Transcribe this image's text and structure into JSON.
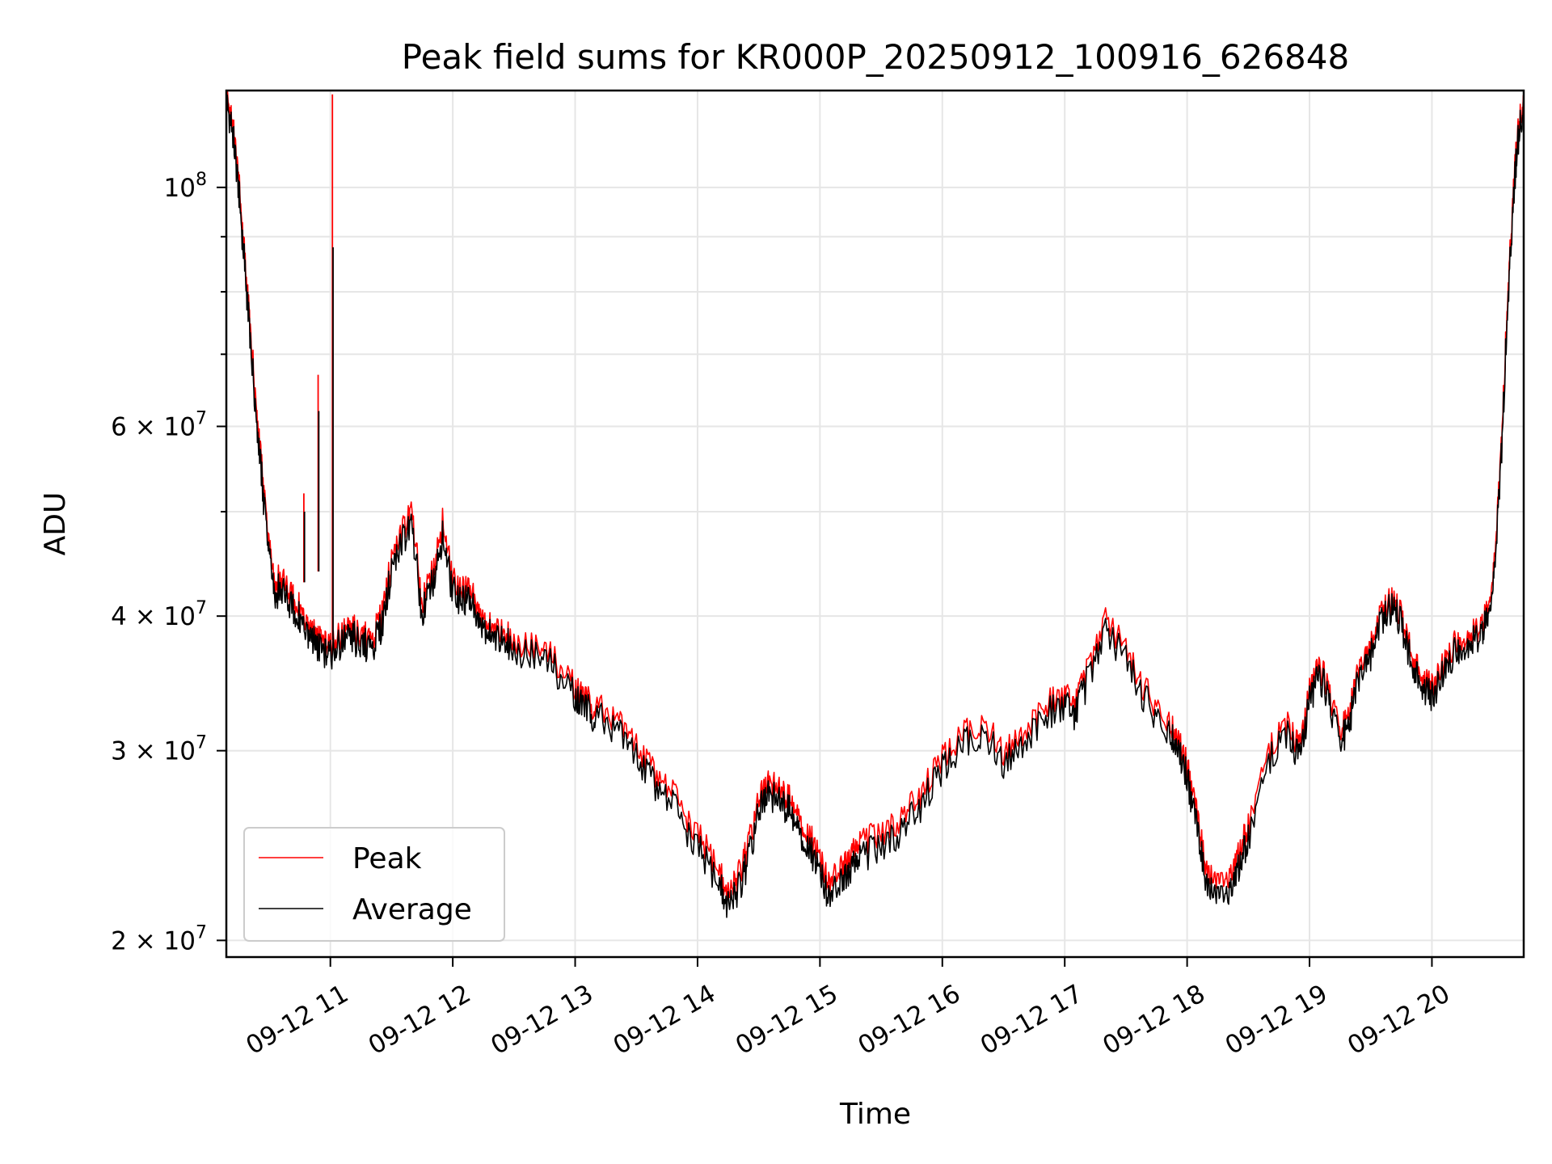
{
  "chart_data": {
    "type": "line",
    "title": "Peak field sums for KR000P_20250912_100916_626848",
    "xlabel": "Time",
    "ylabel": "ADU",
    "yscale": "log",
    "xlim": [
      "2025-09-12 10:09",
      "2025-09-12 20:45"
    ],
    "ylim": [
      19300000,
      123000000
    ],
    "grid": true,
    "legend_position": "lower-left",
    "x_ticks": [
      "09-12 11",
      "09-12 12",
      "09-12 13",
      "09-12 14",
      "09-12 15",
      "09-12 16",
      "09-12 17",
      "09-12 18",
      "09-12 19",
      "09-12 20"
    ],
    "x_tick_times": [
      "2025-09-12 11:00",
      "2025-09-12 12:00",
      "2025-09-12 13:00",
      "2025-09-12 14:00",
      "2025-09-12 15:00",
      "2025-09-12 16:00",
      "2025-09-12 17:00",
      "2025-09-12 18:00",
      "2025-09-12 19:00",
      "2025-09-12 20:00"
    ],
    "y_ticks": [
      {
        "value": 20000000,
        "mantissa": "2 × 10",
        "exp": "7"
      },
      {
        "value": 30000000,
        "mantissa": "3 × 10",
        "exp": "7"
      },
      {
        "value": 40000000,
        "mantissa": "4 × 10",
        "exp": "7"
      },
      {
        "value": 60000000,
        "mantissa": "6 × 10",
        "exp": "7"
      },
      {
        "value": 100000000,
        "mantissa": "10",
        "exp": "8"
      }
    ],
    "y_minor_ticks": [
      50000000,
      70000000,
      80000000,
      90000000
    ],
    "series": [
      {
        "name": "Peak",
        "color": "#ff0000"
      },
      {
        "name": "Average",
        "color": "#000000"
      }
    ],
    "x": [
      "2025-09-12 10:09",
      "2025-09-12 10:12",
      "2025-09-12 10:15",
      "2025-09-12 10:18",
      "2025-09-12 10:21",
      "2025-09-12 10:24",
      "2025-09-12 10:27",
      "2025-09-12 10:30",
      "2025-09-12 10:33",
      "2025-09-12 10:36",
      "2025-09-12 10:40",
      "2025-09-12 10:44",
      "2025-09-12 10:48",
      "2025-09-12 10:52",
      "2025-09-12 10:56",
      "2025-09-12 11:00",
      "2025-09-12 11:05",
      "2025-09-12 11:10",
      "2025-09-12 11:15",
      "2025-09-12 11:20",
      "2025-09-12 11:25",
      "2025-09-12 11:30",
      "2025-09-12 11:35",
      "2025-09-12 11:40",
      "2025-09-12 11:45",
      "2025-09-12 11:50",
      "2025-09-12 11:55",
      "2025-09-12 12:00",
      "2025-09-12 12:05",
      "2025-09-12 12:10",
      "2025-09-12 12:15",
      "2025-09-12 12:20",
      "2025-09-12 12:25",
      "2025-09-12 12:30",
      "2025-09-12 12:40",
      "2025-09-12 12:50",
      "2025-09-12 13:00",
      "2025-09-12 13:05",
      "2025-09-12 13:10",
      "2025-09-12 13:20",
      "2025-09-12 13:30",
      "2025-09-12 13:40",
      "2025-09-12 13:50",
      "2025-09-12 14:00",
      "2025-09-12 14:10",
      "2025-09-12 14:15",
      "2025-09-12 14:20",
      "2025-09-12 14:25",
      "2025-09-12 14:30",
      "2025-09-12 14:35",
      "2025-09-12 14:40",
      "2025-09-12 14:45",
      "2025-09-12 14:50",
      "2025-09-12 14:55",
      "2025-09-12 15:00",
      "2025-09-12 15:05",
      "2025-09-12 15:10",
      "2025-09-12 15:15",
      "2025-09-12 15:20",
      "2025-09-12 15:30",
      "2025-09-12 15:40",
      "2025-09-12 15:50",
      "2025-09-12 16:00",
      "2025-09-12 16:10",
      "2025-09-12 16:20",
      "2025-09-12 16:30",
      "2025-09-12 16:40",
      "2025-09-12 16:50",
      "2025-09-12 17:00",
      "2025-09-12 17:05",
      "2025-09-12 17:10",
      "2025-09-12 17:20",
      "2025-09-12 17:30",
      "2025-09-12 17:40",
      "2025-09-12 17:50",
      "2025-09-12 17:55",
      "2025-09-12 18:00",
      "2025-09-12 18:05",
      "2025-09-12 18:10",
      "2025-09-12 18:15",
      "2025-09-12 18:20",
      "2025-09-12 18:25",
      "2025-09-12 18:30",
      "2025-09-12 18:40",
      "2025-09-12 18:50",
      "2025-09-12 18:55",
      "2025-09-12 19:00",
      "2025-09-12 19:05",
      "2025-09-12 19:10",
      "2025-09-12 19:15",
      "2025-09-12 19:20",
      "2025-09-12 19:25",
      "2025-09-12 19:30",
      "2025-09-12 19:35",
      "2025-09-12 19:40",
      "2025-09-12 19:45",
      "2025-09-12 19:50",
      "2025-09-12 19:55",
      "2025-09-12 20:00",
      "2025-09-12 20:05",
      "2025-09-12 20:10",
      "2025-09-12 20:15",
      "2025-09-12 20:20",
      "2025-09-12 20:25",
      "2025-09-12 20:28",
      "2025-09-12 20:31",
      "2025-09-12 20:34",
      "2025-09-12 20:37",
      "2025-09-12 20:40",
      "2025-09-12 20:42",
      "2025-09-12 20:45"
    ],
    "peak": [
      122000000,
      115000000,
      102000000,
      86000000,
      73000000,
      62000000,
      53000000,
      46000000,
      43000000,
      43500000,
      42000000,
      41000000,
      39500000,
      38500000,
      37800000,
      37500000,
      38500000,
      39000000,
      38500000,
      38000000,
      40000000,
      45000000,
      48000000,
      50000000,
      41000000,
      44000000,
      49000000,
      43000000,
      42500000,
      42000000,
      40000000,
      39000000,
      38500000,
      38000000,
      37500000,
      36500000,
      34500000,
      33500000,
      33000000,
      32000000,
      30500000,
      28500000,
      27000000,
      25000000,
      23500000,
      22000000,
      23000000,
      24500000,
      27000000,
      28000000,
      27500000,
      27000000,
      26000000,
      25000000,
      24000000,
      22500000,
      23500000,
      24000000,
      24800000,
      25000000,
      26000000,
      27500000,
      29500000,
      31000000,
      32000000,
      30000000,
      31000000,
      33000000,
      34000000,
      33000000,
      35000000,
      40000000,
      37000000,
      34000000,
      32000000,
      31000000,
      29000000,
      26000000,
      23000000,
      22500000,
      23000000,
      24000000,
      25500000,
      30000000,
      32000000,
      30000000,
      34000000,
      36000000,
      34000000,
      31000000,
      33000000,
      36000000,
      37500000,
      40000000,
      41500000,
      40000000,
      37000000,
      35000000,
      34500000,
      36000000,
      37500000,
      38000000,
      38500000,
      39500000,
      41000000,
      46000000,
      57000000,
      78000000,
      100000000,
      112000000,
      121000000
    ],
    "average": [
      120000000,
      113000000,
      100000000,
      84500000,
      71500000,
      60500000,
      52000000,
      45000000,
      42000000,
      42500000,
      41000000,
      40000000,
      38800000,
      37800000,
      37000000,
      36800000,
      37800000,
      38300000,
      37800000,
      37300000,
      39000000,
      44000000,
      47000000,
      48500000,
      40000000,
      43000000,
      47500000,
      42000000,
      41500000,
      41000000,
      39300000,
      38300000,
      37800000,
      37300000,
      36800000,
      35800000,
      33800000,
      32800000,
      32300000,
      31300000,
      29800000,
      27800000,
      26300000,
      24300000,
      22800000,
      21500000,
      22300000,
      23800000,
      26300000,
      27300000,
      26800000,
      26300000,
      25300000,
      24300000,
      23300000,
      21800000,
      22800000,
      23300000,
      24000000,
      24300000,
      25300000,
      26800000,
      28800000,
      30300000,
      31300000,
      29300000,
      30300000,
      32300000,
      33300000,
      32300000,
      34300000,
      39000000,
      36300000,
      33300000,
      31300000,
      30300000,
      28300000,
      25300000,
      22300000,
      21800000,
      22300000,
      23300000,
      24800000,
      29300000,
      31300000,
      29300000,
      33300000,
      35300000,
      33300000,
      30300000,
      32300000,
      35300000,
      36800000,
      39300000,
      40800000,
      39300000,
      36300000,
      34300000,
      33800000,
      35300000,
      36800000,
      37300000,
      37800000,
      38800000,
      40300000,
      45000000,
      56000000,
      76500000,
      98000000,
      110000000,
      119000000
    ],
    "spikes": [
      {
        "x": "2025-09-12 10:54",
        "peak": 67000000,
        "average": 62000000,
        "base": 44000000
      },
      {
        "x": "2025-09-12 11:01",
        "peak": 122000000,
        "average": 88000000,
        "base": 38000000
      },
      {
        "x": "2025-09-12 10:47",
        "peak": 52000000,
        "average": 50000000,
        "base": 43000000
      }
    ]
  }
}
